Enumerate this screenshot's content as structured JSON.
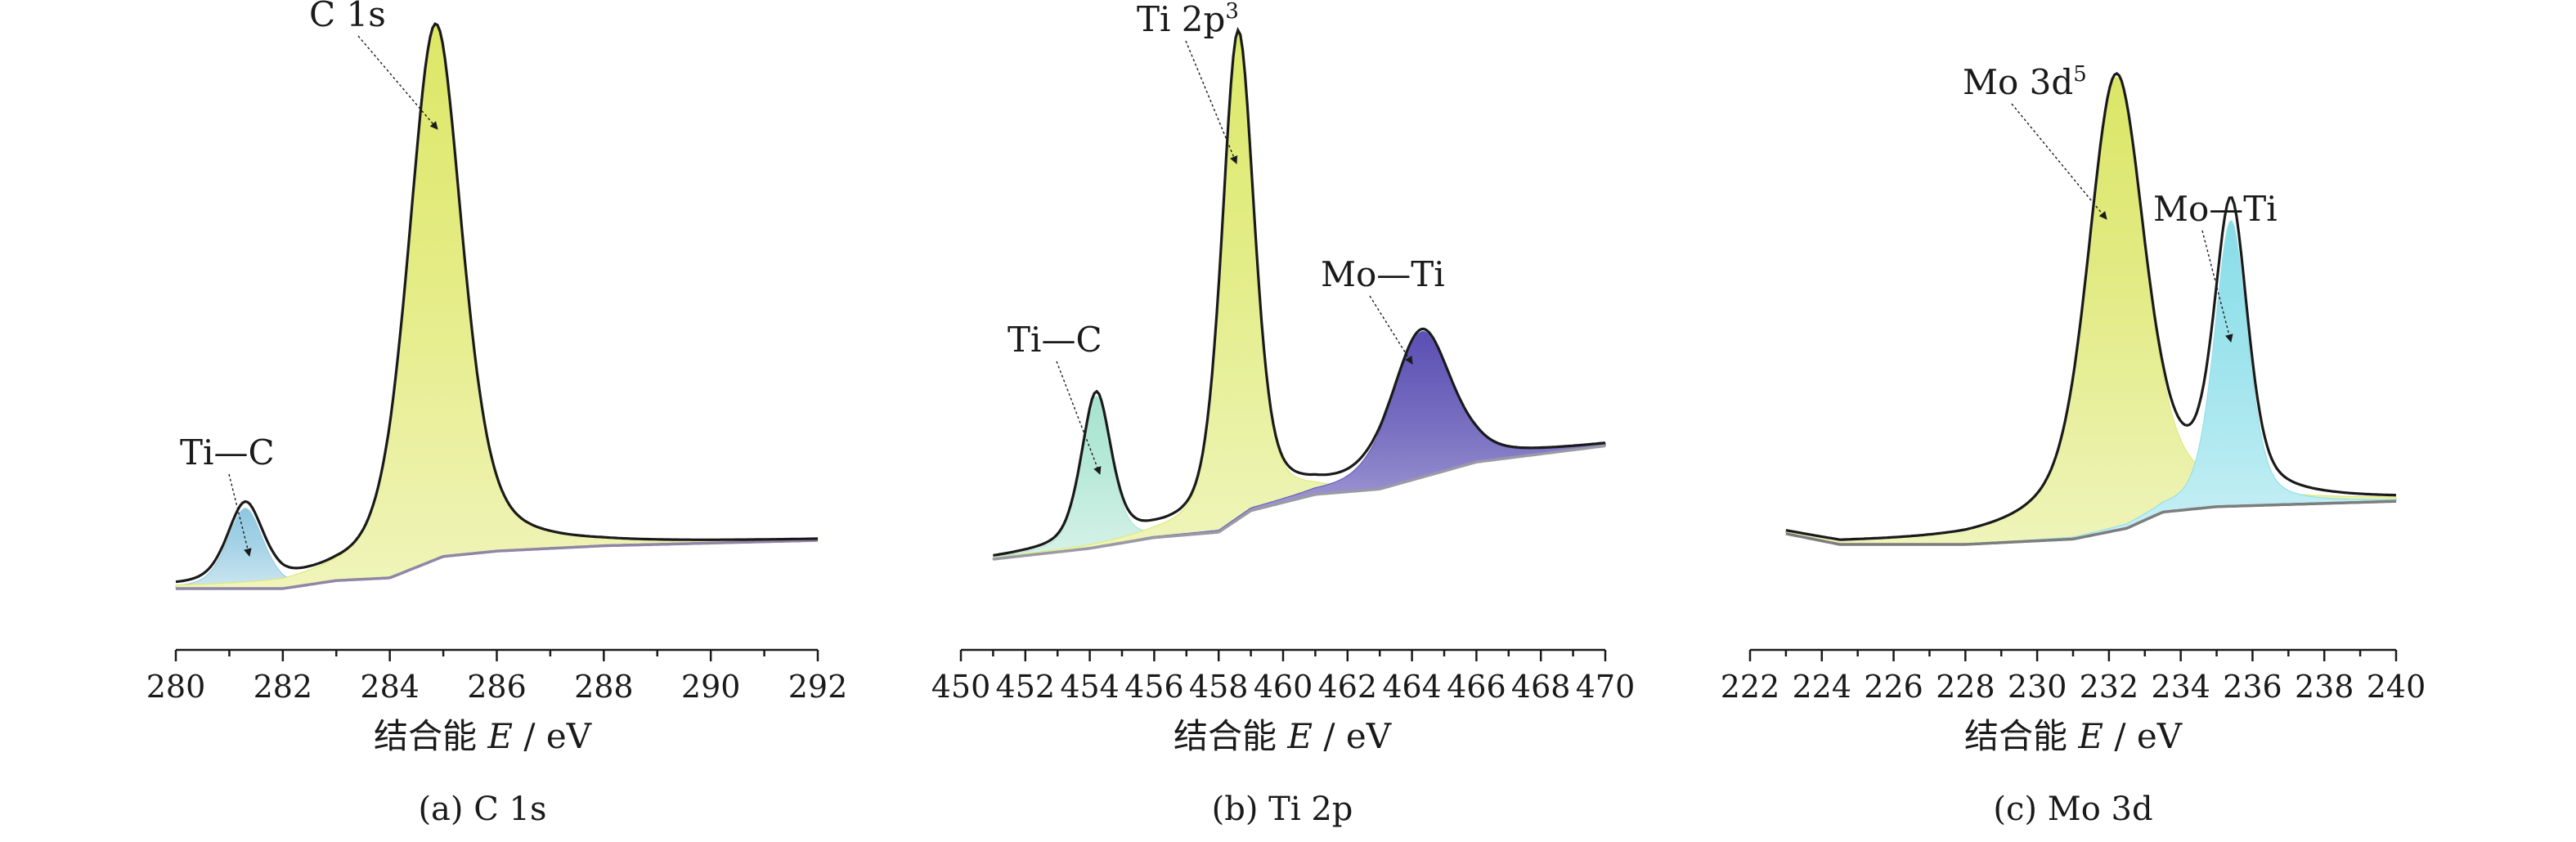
{
  "figure": {
    "panels": [
      {
        "caption": "(a) C 1s",
        "xlabel_prefix": "结合能 ",
        "xlabel_var": "E",
        "xlabel_unit": " / eV"
      },
      {
        "caption": "(b) Ti 2p",
        "xlabel_prefix": "结合能 ",
        "xlabel_var": "E",
        "xlabel_unit": " / eV"
      },
      {
        "caption": "(c) Mo 3d",
        "xlabel_prefix": "结合能 ",
        "xlabel_var": "E",
        "xlabel_unit": " / eV"
      }
    ]
  },
  "chart_data": [
    {
      "type": "area",
      "title": "(a) C 1s",
      "xlabel": "结合能 E / eV",
      "ylabel": "",
      "xlim": [
        280,
        292
      ],
      "x_ticks": [
        "280",
        "282",
        "284",
        "286",
        "288",
        "290",
        "292"
      ],
      "colors": {
        "fit": "#1a1a1a",
        "background": "#8f86a6"
      },
      "background_curve": {
        "x": [
          280,
          282,
          283,
          284,
          285,
          286,
          288,
          292
        ],
        "y": [
          0.0,
          0.0,
          0.015,
          0.02,
          0.06,
          0.07,
          0.08,
          0.09
        ]
      },
      "peaks": [
        {
          "name": "Ti—C",
          "center": 281.3,
          "height": 0.15,
          "fwhm": 0.8,
          "color": "#8ec7e0"
        },
        {
          "name": "C 1s",
          "center": 284.85,
          "height": 1.0,
          "fwhm": 1.2,
          "color": "#dde766"
        }
      ],
      "annotations": [
        {
          "text": "Ti—C",
          "points_to_x": 281.3
        },
        {
          "text": "C 1s",
          "points_to_x": 284.9
        }
      ]
    },
    {
      "type": "area",
      "title": "(b) Ti 2p",
      "xlabel": "结合能 E / eV",
      "ylabel": "",
      "xlim": [
        450,
        470
      ],
      "x_ticks": [
        "450",
        "452",
        "454",
        "456",
        "458",
        "460",
        "462",
        "464",
        "466",
        "468",
        "470"
      ],
      "colors": {
        "fit": "#1a1a1a",
        "background": "#9a9aa6"
      },
      "background_curve": {
        "x": [
          451,
          454,
          456,
          458,
          459,
          461,
          463,
          466,
          470
        ],
        "y": [
          0.0,
          0.02,
          0.04,
          0.05,
          0.09,
          0.12,
          0.13,
          0.18,
          0.21
        ]
      },
      "peaks": [
        {
          "name": "Ti—C",
          "center": 454.2,
          "height": 0.28,
          "fwhm": 1.1,
          "color": "#a6e3cf"
        },
        {
          "name": "Ti 2p3",
          "center": 458.6,
          "height": 0.9,
          "fwhm": 1.2,
          "color": "#dce96a"
        },
        {
          "name": "Mo—Ti",
          "center": 464.3,
          "height": 0.27,
          "fwhm": 2.2,
          "color": "#5a4fb3"
        }
      ],
      "annotations": [
        {
          "text": "Ti—C",
          "points_to_x": 454.2
        },
        {
          "text": "Ti 2p",
          "sup": "3",
          "points_to_x": 458.6
        },
        {
          "text": "Mo—Ti",
          "points_to_x": 464.1
        }
      ]
    },
    {
      "type": "area",
      "title": "(c) Mo 3d",
      "xlabel": "结合能 E / eV",
      "ylabel": "",
      "xlim": [
        222,
        240
      ],
      "x_ticks": [
        "222",
        "224",
        "226",
        "228",
        "230",
        "232",
        "234",
        "236",
        "238",
        "240"
      ],
      "colors": {
        "fit": "#1a1a1a",
        "background": "#7d7d7d"
      },
      "background_curve": {
        "x": [
          223,
          224.5,
          228,
          231,
          232.5,
          233.5,
          235,
          240
        ],
        "y": [
          0.02,
          0.0,
          0.0,
          0.01,
          0.03,
          0.06,
          0.07,
          0.08
        ]
      },
      "peaks": [
        {
          "name": "Mo 3d5",
          "center": 232.2,
          "height": 0.84,
          "fwhm": 1.7,
          "gamma": 2.3,
          "color": "#dbe666"
        },
        {
          "name": "Mo—Ti",
          "center": 235.4,
          "height": 0.53,
          "fwhm": 1.1,
          "color": "#88dde8"
        }
      ],
      "annotations": [
        {
          "text": "Mo 3d",
          "sup": "5",
          "points_to_x": 232.0
        },
        {
          "text": "Mo—Ti",
          "points_to_x": 235.4
        }
      ]
    }
  ]
}
